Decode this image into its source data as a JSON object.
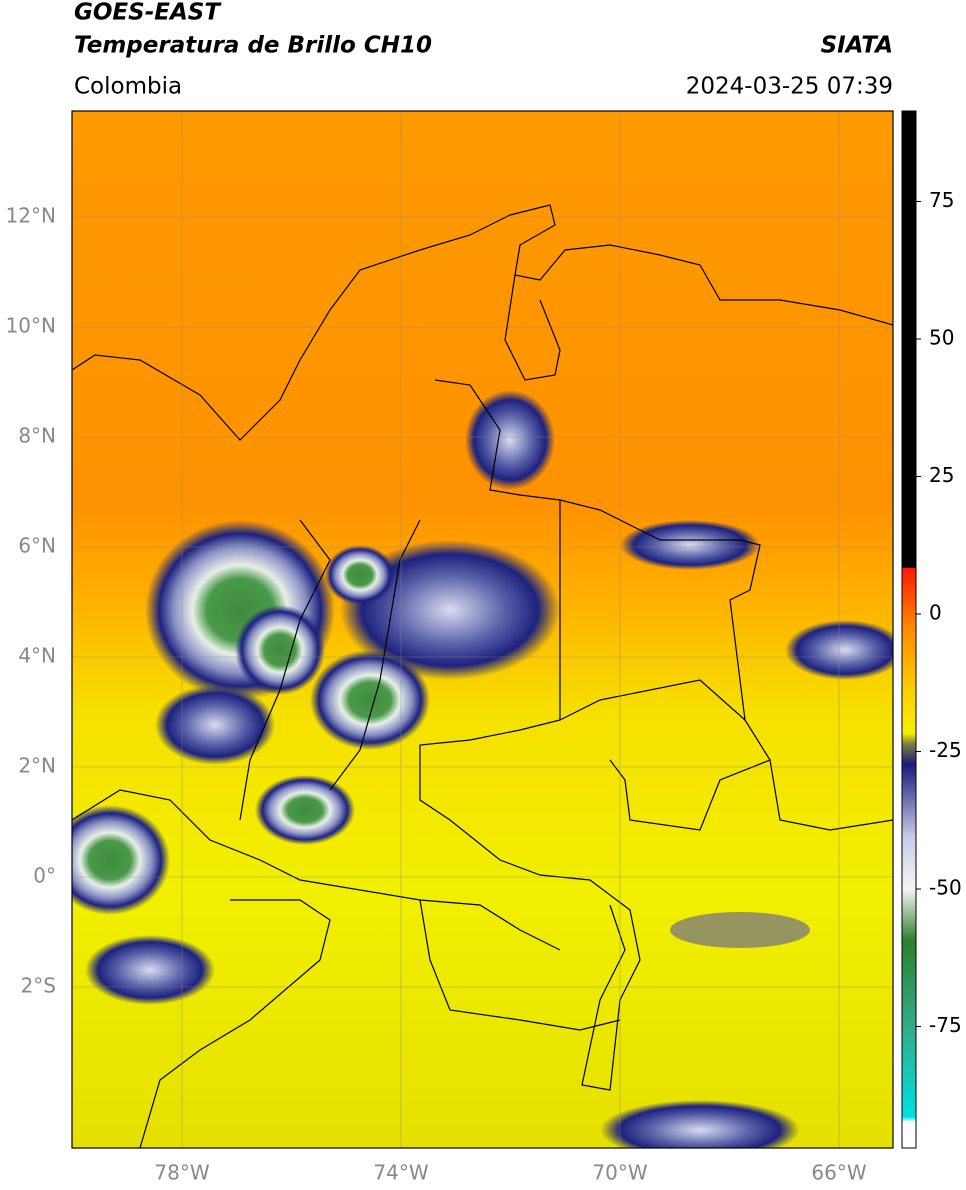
{
  "header": {
    "title_lines": [
      "GOES-EAST",
      "Temperatura de Brillo CH10"
    ],
    "source": "SIATA",
    "region": "Colombia",
    "datetime": "2024-03-25 07:39"
  },
  "map": {
    "lat_ticks": [
      {
        "value": 12,
        "label": "12°N"
      },
      {
        "value": 10,
        "label": "10°N"
      },
      {
        "value": 8,
        "label": "8°N"
      },
      {
        "value": 6,
        "label": "6°N"
      },
      {
        "value": 4,
        "label": "4°N"
      },
      {
        "value": 2,
        "label": "2°N"
      },
      {
        "value": 0,
        "label": "0°"
      },
      {
        "value": -2,
        "label": "2°S"
      }
    ],
    "lon_ticks": [
      {
        "value": -78,
        "label": "78°W"
      },
      {
        "value": -74,
        "label": "74°W"
      },
      {
        "value": -70,
        "label": "70°W"
      },
      {
        "value": -66,
        "label": "66°W"
      }
    ]
  },
  "colorbar": {
    "ticks": [
      75,
      50,
      25,
      0,
      -25,
      -50,
      -75
    ]
  }
}
